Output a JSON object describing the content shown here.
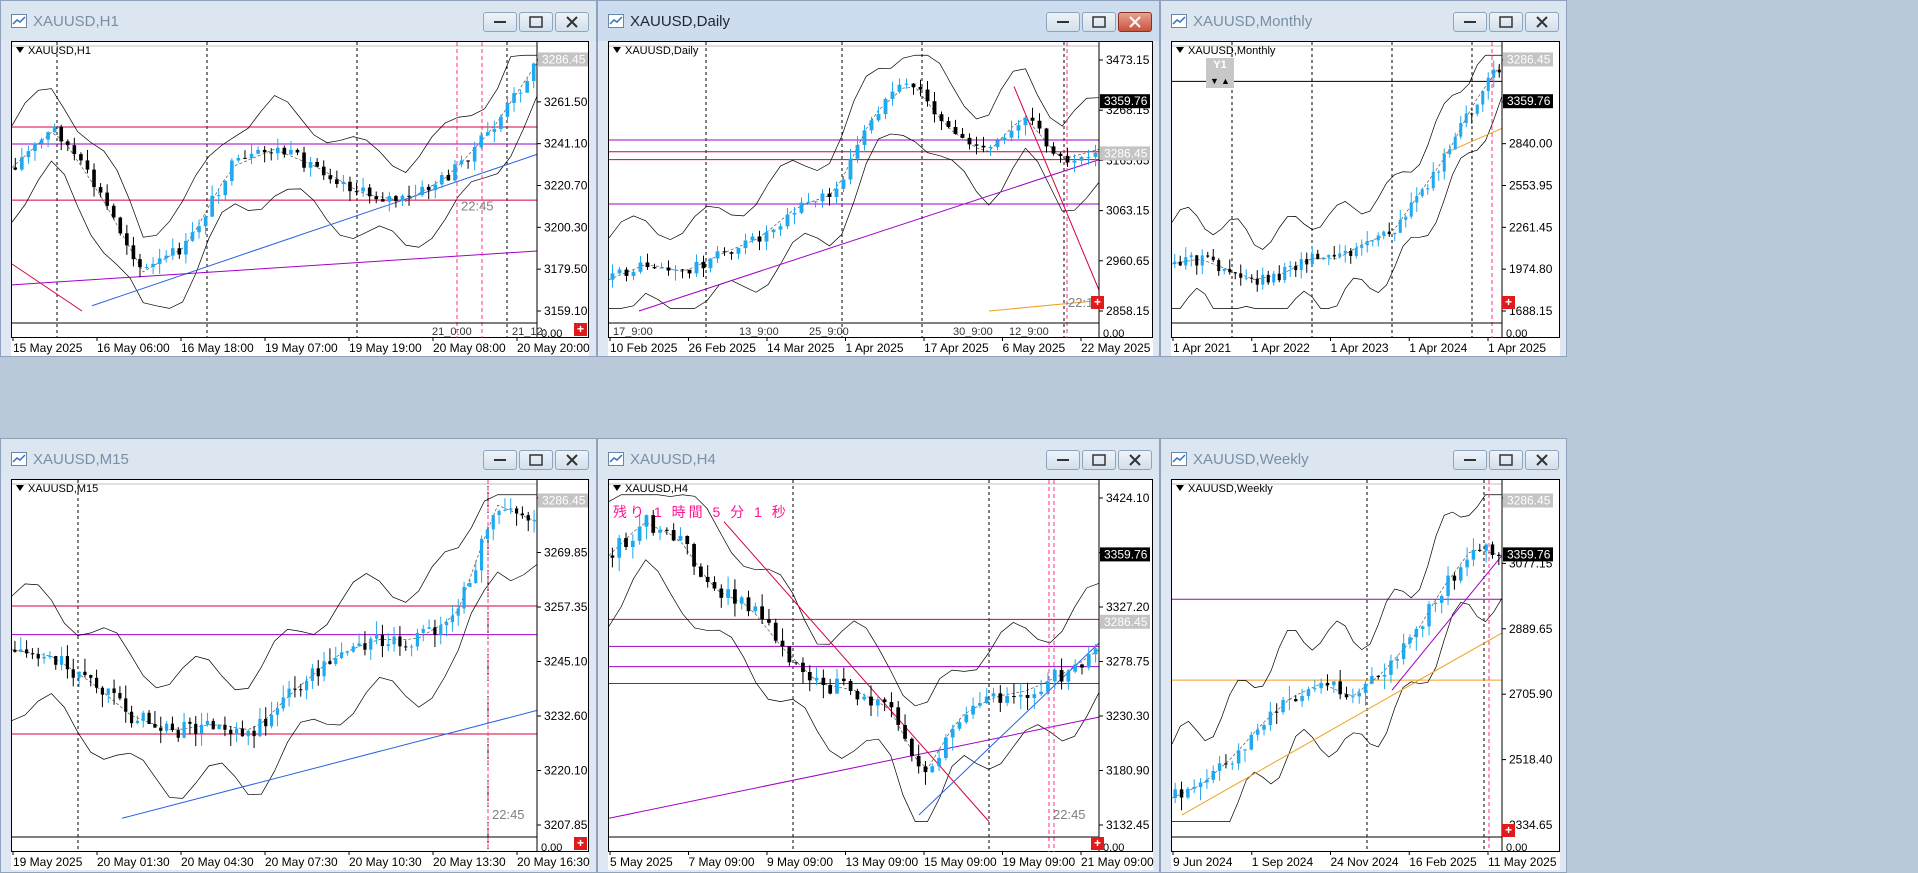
{
  "symbol": "XAUUSD",
  "colors": {
    "bull": "#1fa9f0",
    "bear": "#000000",
    "magenta": "#a100c8",
    "red_line": "#d7003a",
    "blue_line": "#2b62e0",
    "orange_line": "#f0a020",
    "band": "#000000"
  },
  "windows": [
    {
      "title": "XAUUSD,H1",
      "chart_label": "XAUUSD,H1",
      "active": false,
      "yticks": [
        "3281.90",
        "3261.50",
        "3241.10",
        "3220.70",
        "3200.30",
        "3179.50",
        "3159.10"
      ],
      "price_badges": [
        {
          "text": "3286.45",
          "style": "gray"
        }
      ],
      "time_tag": "22:45",
      "x_markers": [
        "21_0:00",
        "21_12:"
      ],
      "x_small": "0.00",
      "xlabels": [
        "15 May 2025",
        "16 May 06:00",
        "16 May 18:00",
        "19 May 07:00",
        "19 May 19:00",
        "20 May 08:00",
        "20 May 20:00"
      ]
    },
    {
      "title": "XAUUSD,Daily",
      "chart_label": "XAUUSD,Daily",
      "active": true,
      "yticks": [
        "3473.15",
        "3268.15",
        "3165.65",
        "3063.15",
        "2960.65",
        "2858.15"
      ],
      "price_badges": [
        {
          "text": "3359.76",
          "style": "black"
        },
        {
          "text": "3286.45",
          "style": "gray"
        }
      ],
      "time_tag": "22:1",
      "x_markers": [
        "17_9:00",
        "13_9:00",
        "25_9:00",
        "30_9:00",
        "12_9:00"
      ],
      "x_small": "0.00",
      "xlabels": [
        "10 Feb 2025",
        "26 Feb 2025",
        "14 Mar 2025",
        "1 Apr 2025",
        "17 Apr 2025",
        "6 May 2025",
        "22 May 2025"
      ]
    },
    {
      "title": "XAUUSD,Monthly",
      "chart_label": "XAUUSD,Monthly",
      "active": false,
      "yticks": [
        "3419.75",
        "3127.25",
        "2840.00",
        "2553.95",
        "2261.45",
        "1974.80",
        "1688.15"
      ],
      "price_badges": [
        {
          "text": "3359.76",
          "style": "black"
        },
        {
          "text": "3286.45",
          "style": "gray"
        }
      ],
      "y1_label": "Y1",
      "x_small": "0.00",
      "xlabels": [
        "1 Apr 2021",
        "1 Apr 2022",
        "1 Apr 2023",
        "1 Apr 2024",
        "1 Apr 2025"
      ]
    },
    {
      "title": "XAUUSD,M15",
      "chart_label": "XAUUSD,M15",
      "active": false,
      "yticks": [
        "3282.35",
        "3269.85",
        "3257.35",
        "3245.10",
        "3232.60",
        "3220.10",
        "3207.85"
      ],
      "price_badges": [
        {
          "text": "3286.45",
          "style": "gray"
        }
      ],
      "time_tag": "22:45",
      "x_small": "0.00",
      "xlabels": [
        "19 May 2025",
        "20 May 01:30",
        "20 May 04:30",
        "20 May 07:30",
        "20 May 10:30",
        "20 May 13:30",
        "20 May 16:30"
      ]
    },
    {
      "title": "XAUUSD,H4",
      "chart_label": "XAUUSD,H4",
      "active": false,
      "countdown": "残り 1 時間 5 分 1 秒",
      "yticks": [
        "3424.10",
        "3375.65",
        "3327.20",
        "3278.75",
        "3230.30",
        "3180.90",
        "3132.45"
      ],
      "price_badges": [
        {
          "text": "3359.76",
          "style": "black"
        },
        {
          "text": "3286.45",
          "style": "gray"
        }
      ],
      "time_tag": "22:45",
      "x_small": "0.00",
      "xlabels": [
        "5 May 2025",
        "7 May 09:00",
        "9 May 09:00",
        "13 May 09:00",
        "15 May 09:00",
        "19 May 09:00",
        "21 May 09:00"
      ]
    },
    {
      "title": "XAUUSD,Weekly",
      "chart_label": "XAUUSD,Weekly",
      "active": false,
      "yticks": [
        "3448.40",
        "3077.15",
        "2889.65",
        "2705.90",
        "2518.40",
        "2334.65"
      ],
      "price_badges": [
        {
          "text": "3359.76",
          "style": "black"
        },
        {
          "text": "3286.45",
          "style": "gray"
        }
      ],
      "x_small": "0.00",
      "xlabels": [
        "9 Jun 2024",
        "1 Sep 2024",
        "24 Nov 2024",
        "16 Feb 2025",
        "11 May 2025"
      ]
    }
  ]
}
